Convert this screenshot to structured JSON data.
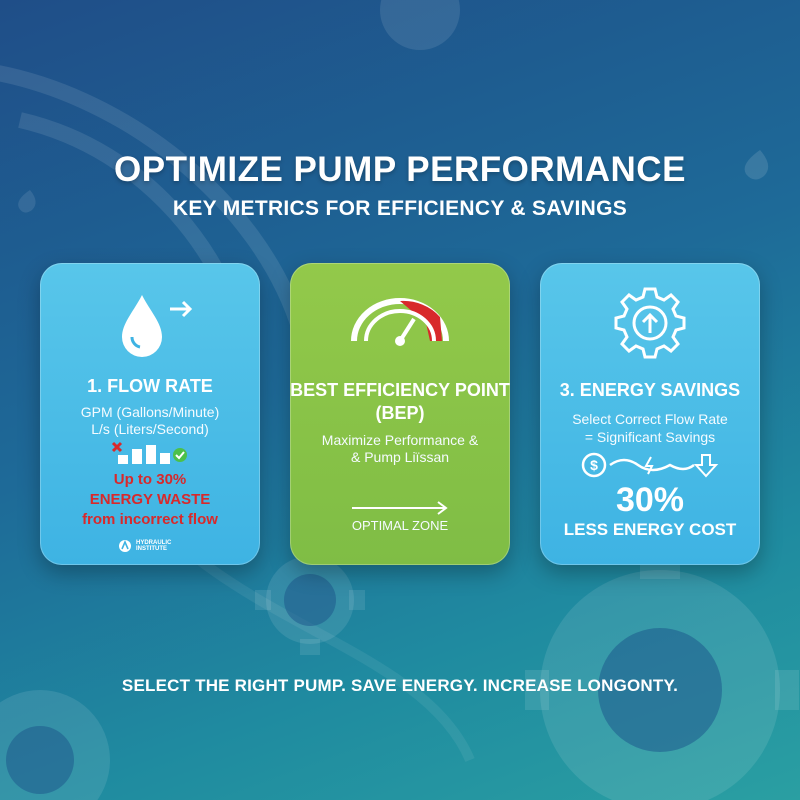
{
  "header": {
    "title": "OPTIMIZE PUMP PERFORMANCE",
    "subtitle": "KEY METRICS FOR EFFICIENCY & SAVINGS"
  },
  "cards": [
    {
      "icon": "water-drop-arrow-icon",
      "title": "1. FLOW RATE",
      "line1": "GPM (Gallons/Minute)",
      "line2": "L/s (Liters/Second)",
      "highlight1": "Up to 30%",
      "highlight2": "ENERGY WASTE",
      "highlight3": "from incorrect flow",
      "logo_text": "HYDRAULIC INSTITUTE"
    },
    {
      "icon": "gauge-icon",
      "title_line1": "BEST EFFICIENCY POINT",
      "title_line2": "(BEP)",
      "line1": "Maximize Performance &",
      "line2": "& Pump Liïssan",
      "zone_label": "OPTIMAL ZONE"
    },
    {
      "icon": "gear-arrow-icon",
      "title": "3. ENERGY SAVINGS",
      "line1": "Select Correct Flow Rate",
      "line2": "= Significant Savings",
      "big_value": "30%",
      "big_caption": "LESS ENERGY COST"
    }
  ],
  "footer": {
    "tagline": "SELECT THE RIGHT PUMP. SAVE ENERGY. INCREASE LONGONTY."
  },
  "colors": {
    "accent_blue": "#3eb3e3",
    "accent_green": "#7fbd45",
    "warning_red": "#d8292b",
    "check_green": "#4cc04a"
  }
}
